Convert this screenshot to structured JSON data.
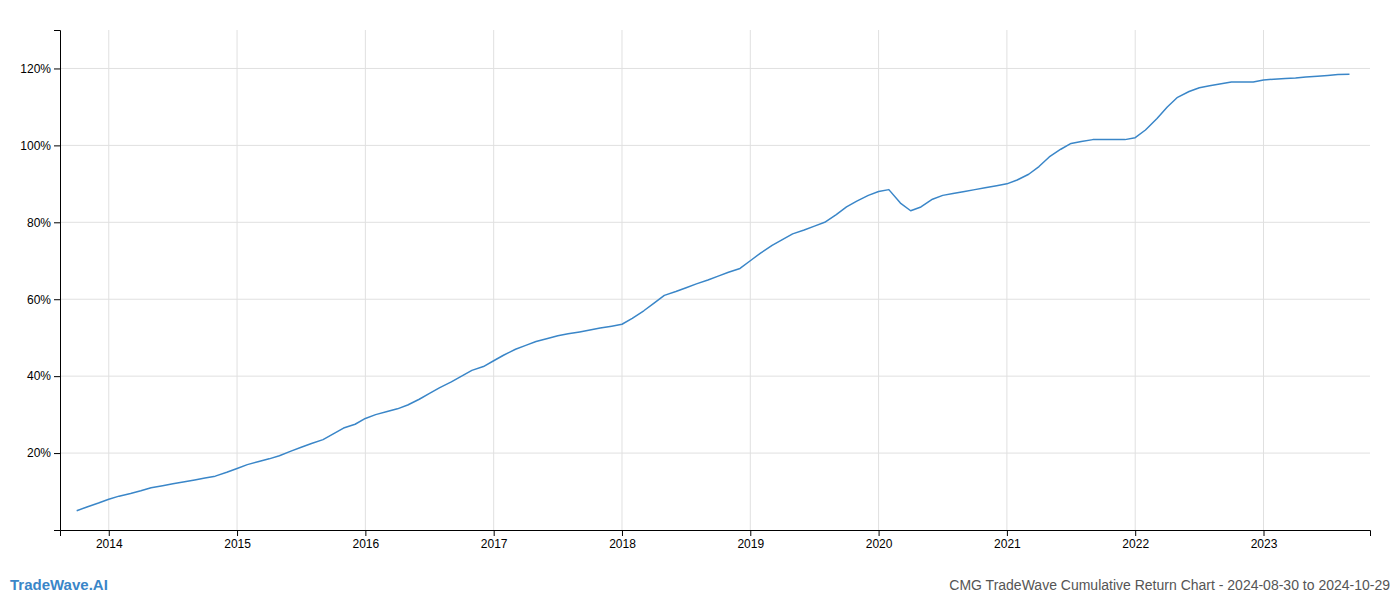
{
  "chart_data": {
    "type": "line",
    "title": "CMG TradeWave Cumulative Return Chart - 2024-08-30 to 2024-10-29",
    "annotations": [
      "TradeWave.AI"
    ],
    "color": "#3a86c8",
    "grid": true,
    "x": [
      2013.75,
      2013.83,
      2013.92,
      2014.0,
      2014.08,
      2014.17,
      2014.25,
      2014.33,
      2014.42,
      2014.5,
      2014.58,
      2014.67,
      2014.75,
      2014.83,
      2014.92,
      2015.0,
      2015.08,
      2015.17,
      2015.25,
      2015.33,
      2015.42,
      2015.5,
      2015.58,
      2015.67,
      2015.75,
      2015.83,
      2015.92,
      2016.0,
      2016.08,
      2016.17,
      2016.25,
      2016.33,
      2016.42,
      2016.5,
      2016.58,
      2016.67,
      2016.75,
      2016.83,
      2016.92,
      2017.0,
      2017.08,
      2017.17,
      2017.25,
      2017.33,
      2017.42,
      2017.5,
      2017.58,
      2017.67,
      2017.75,
      2017.83,
      2017.92,
      2018.0,
      2018.08,
      2018.17,
      2018.25,
      2018.33,
      2018.42,
      2018.5,
      2018.58,
      2018.67,
      2018.75,
      2018.83,
      2018.92,
      2019.0,
      2019.08,
      2019.17,
      2019.25,
      2019.33,
      2019.42,
      2019.5,
      2019.58,
      2019.67,
      2019.75,
      2019.83,
      2019.92,
      2020.0,
      2020.08,
      2020.17,
      2020.25,
      2020.33,
      2020.42,
      2020.5,
      2020.58,
      2020.67,
      2020.75,
      2020.83,
      2020.92,
      2021.0,
      2021.08,
      2021.17,
      2021.25,
      2021.33,
      2021.42,
      2021.5,
      2021.58,
      2021.67,
      2021.75,
      2021.83,
      2021.92,
      2022.0,
      2022.08,
      2022.17,
      2022.25,
      2022.33,
      2022.42,
      2022.5,
      2022.58,
      2022.67,
      2022.75,
      2022.83,
      2022.92,
      2023.0,
      2023.08,
      2023.17,
      2023.25,
      2023.33,
      2023.42,
      2023.5,
      2023.58,
      2023.67
    ],
    "values": [
      5.0,
      6.0,
      7.0,
      8.0,
      8.8,
      9.5,
      10.2,
      11.0,
      11.5,
      12.0,
      12.5,
      13.0,
      13.5,
      14.0,
      15.0,
      16.0,
      17.0,
      17.8,
      18.5,
      19.3,
      20.5,
      21.5,
      22.5,
      23.5,
      25.0,
      26.5,
      27.5,
      29.0,
      30.0,
      30.8,
      31.5,
      32.5,
      34.0,
      35.5,
      37.0,
      38.5,
      40.0,
      41.5,
      42.5,
      44.0,
      45.5,
      47.0,
      48.0,
      49.0,
      49.8,
      50.5,
      51.0,
      51.5,
      52.0,
      52.5,
      53.0,
      53.5,
      55.0,
      57.0,
      59.0,
      61.0,
      62.0,
      63.0,
      64.0,
      65.0,
      66.0,
      67.0,
      68.0,
      70.0,
      72.0,
      74.0,
      75.5,
      77.0,
      78.0,
      79.0,
      80.0,
      82.0,
      84.0,
      85.5,
      87.0,
      88.0,
      88.5,
      85.0,
      83.0,
      84.0,
      86.0,
      87.0,
      87.5,
      88.0,
      88.5,
      89.0,
      89.5,
      90.0,
      91.0,
      92.5,
      94.5,
      97.0,
      99.0,
      100.5,
      101.0,
      101.5,
      101.5,
      101.5,
      101.5,
      102.0,
      104.0,
      107.0,
      110.0,
      112.5,
      114.0,
      115.0,
      115.5,
      116.0,
      116.5,
      116.5,
      116.5,
      117.0,
      117.2,
      117.4,
      117.5,
      117.8,
      118.0,
      118.2,
      118.4,
      118.5
    ],
    "xlim": [
      2013.62,
      2023.83
    ],
    "xticks": [
      2014,
      2015,
      2016,
      2017,
      2018,
      2019,
      2020,
      2021,
      2022,
      2023
    ],
    "ylim": [
      0,
      130
    ],
    "yticks": [
      {
        "value": 20,
        "label": "20%"
      },
      {
        "value": 40,
        "label": "40%"
      },
      {
        "value": 60,
        "label": "60%"
      },
      {
        "value": 80,
        "label": "80%"
      },
      {
        "value": 100,
        "label": "100%"
      },
      {
        "value": 120,
        "label": "120%"
      }
    ]
  }
}
